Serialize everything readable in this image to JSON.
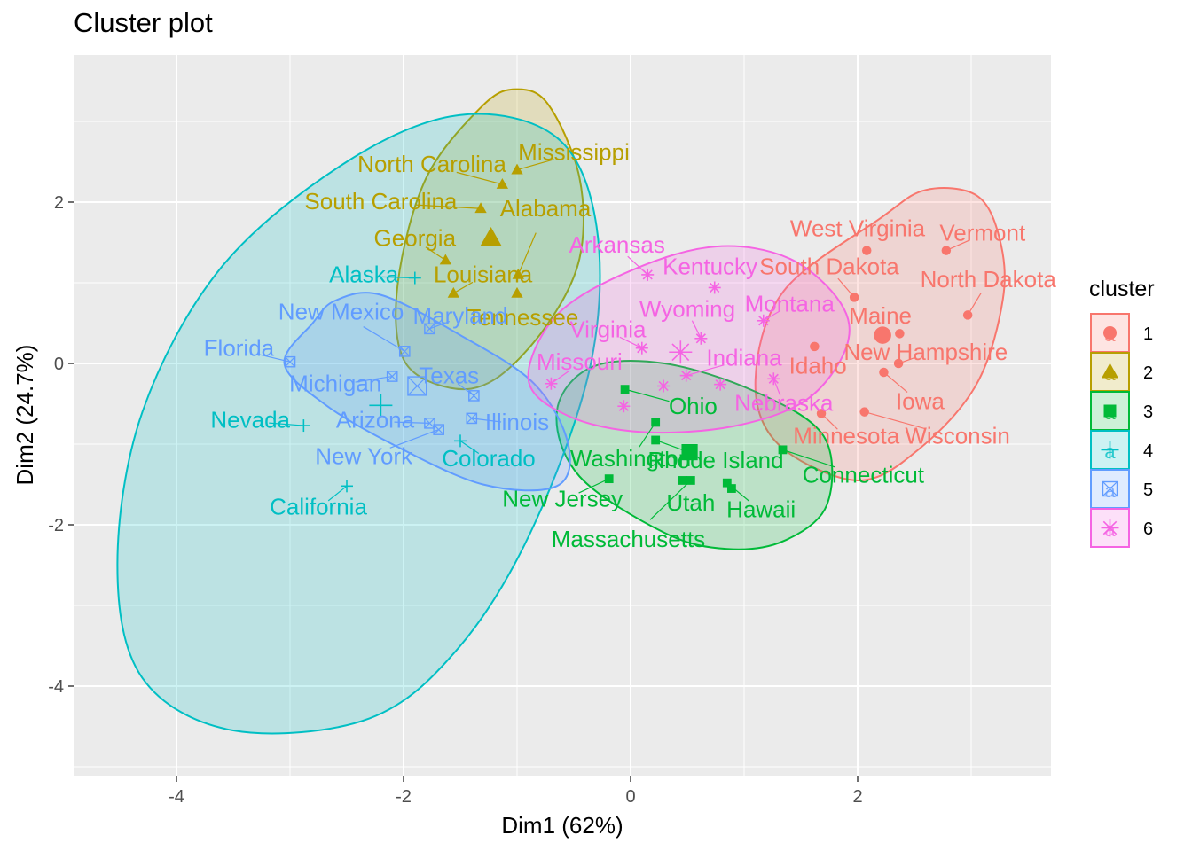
{
  "chart_data": {
    "type": "scatter",
    "title": "Cluster plot",
    "xlabel": "Dim1 (62%)",
    "ylabel": "Dim2 (24.7%)",
    "xlim": [
      -4.9,
      3.7
    ],
    "ylim": [
      -5.1,
      3.6
    ],
    "xticks": [
      -4,
      -2,
      0,
      2
    ],
    "yticks": [
      -4,
      -2,
      0,
      2
    ],
    "grid": true,
    "legend": {
      "title": "cluster",
      "position": "right",
      "items": [
        {
          "label": "1",
          "color": "#F8766D",
          "shape": "circle"
        },
        {
          "label": "2",
          "color": "#B79F00",
          "shape": "triangle"
        },
        {
          "label": "3",
          "color": "#00BA38",
          "shape": "square"
        },
        {
          "label": "4",
          "color": "#00BFC4",
          "shape": "plus"
        },
        {
          "label": "5",
          "color": "#619CFF",
          "shape": "boxx"
        },
        {
          "label": "6",
          "color": "#F564E3",
          "shape": "star"
        }
      ]
    },
    "series": [
      {
        "name": "1",
        "color": "#F8766D",
        "shape": "circle",
        "centroid": [
          2.22,
          0.35
        ],
        "ellipse": {
          "poly": [
            [
              2.0,
              -1.45
            ],
            [
              1.3,
              -1.0
            ],
            [
              1.1,
              -0.2
            ],
            [
              1.35,
              0.9
            ],
            [
              2.2,
              1.8
            ],
            [
              2.6,
              2.15
            ],
            [
              3.05,
              2.08
            ],
            [
              3.25,
              1.55
            ],
            [
              3.28,
              0.8
            ],
            [
              3.05,
              -0.25
            ],
            [
              2.55,
              -1.05
            ]
          ]
        },
        "points": [
          {
            "label": "West Virginia",
            "x": 2.08,
            "y": 1.4
          },
          {
            "label": "Vermont",
            "x": 2.78,
            "y": 1.4
          },
          {
            "label": "South Dakota",
            "x": 1.97,
            "y": 0.82
          },
          {
            "label": "North Dakota",
            "x": 2.97,
            "y": 0.6
          },
          {
            "label": "Maine",
            "x": 2.37,
            "y": 0.37
          },
          {
            "label": "Idaho",
            "x": 1.62,
            "y": 0.21
          },
          {
            "label": "New Hampshire",
            "x": 2.36,
            "y": 0.0
          },
          {
            "label": "Iowa",
            "x": 2.23,
            "y": -0.11
          },
          {
            "label": "Minnesota",
            "x": 1.68,
            "y": -0.62
          },
          {
            "label": "Wisconsin",
            "x": 2.06,
            "y": -0.6
          }
        ]
      },
      {
        "name": "2",
        "color": "#B79F00",
        "shape": "triangle",
        "centroid": [
          -1.23,
          1.55
        ],
        "ellipse": {
          "poly": [
            [
              -1.6,
              -0.3
            ],
            [
              -2.0,
              0.05
            ],
            [
              -2.05,
              1.0
            ],
            [
              -1.8,
              2.3
            ],
            [
              -1.3,
              3.2
            ],
            [
              -1.0,
              3.4
            ],
            [
              -0.72,
              3.2
            ],
            [
              -0.45,
              2.3
            ],
            [
              -0.45,
              1.3
            ],
            [
              -0.75,
              0.45
            ],
            [
              -1.2,
              -0.2
            ]
          ]
        },
        "points": [
          {
            "label": "Mississippi",
            "x": -1.0,
            "y": 2.4
          },
          {
            "label": "North Carolina",
            "x": -1.13,
            "y": 2.22
          },
          {
            "label": "South Carolina",
            "x": -1.32,
            "y": 1.92
          },
          {
            "label": "Alabama",
            "x": -0.99,
            "y": 1.1
          },
          {
            "label": "Georgia",
            "x": -1.63,
            "y": 1.28
          },
          {
            "label": "Louisiana",
            "x": -1.56,
            "y": 0.87
          },
          {
            "label": "Tennessee",
            "x": -1.0,
            "y": 0.87
          }
        ]
      },
      {
        "name": "3",
        "color": "#00BA38",
        "shape": "square",
        "centroid": [
          0.52,
          -1.1
        ],
        "ellipse": {
          "poly": [
            [
              0.85,
              -2.3
            ],
            [
              0.3,
              -2.1
            ],
            [
              -0.45,
              -1.4
            ],
            [
              -0.65,
              -0.6
            ],
            [
              -0.35,
              -0.05
            ],
            [
              0.3,
              0.0
            ],
            [
              1.1,
              -0.35
            ],
            [
              1.7,
              -0.9
            ],
            [
              1.73,
              -1.75
            ],
            [
              1.35,
              -2.2
            ]
          ]
        },
        "points": [
          {
            "label": "Ohio",
            "x": -0.05,
            "y": -0.32
          },
          {
            "label": "Washington",
            "x": 0.22,
            "y": -0.73
          },
          {
            "label": "Rhode Island",
            "x": 0.22,
            "y": -0.95
          },
          {
            "label": "Connecticut",
            "x": 1.34,
            "y": -1.07
          },
          {
            "label": "New Jersey",
            "x": -0.19,
            "y": -1.43
          },
          {
            "label": "Utah",
            "x": 0.46,
            "y": -1.45
          },
          {
            "label": "Massachusetts",
            "x": 0.53,
            "y": -1.45
          },
          {
            "label": "Hawaii",
            "x": 0.85,
            "y": -1.48
          },
          {
            "label": "Hawaii-2",
            "x": 0.89,
            "y": -1.55
          }
        ]
      },
      {
        "name": "4",
        "color": "#00BFC4",
        "shape": "plus",
        "centroid": [
          -2.2,
          -0.52
        ],
        "ellipse": {
          "poly": [
            [
              -2.3,
              -4.4
            ],
            [
              -3.5,
              -4.55
            ],
            [
              -4.3,
              -3.9
            ],
            [
              -4.52,
              -2.5
            ],
            [
              -4.3,
              -0.6
            ],
            [
              -3.6,
              1.2
            ],
            [
              -2.5,
              2.5
            ],
            [
              -1.5,
              3.08
            ],
            [
              -0.65,
              2.8
            ],
            [
              -0.3,
              1.7
            ],
            [
              -0.35,
              0.0
            ],
            [
              -0.85,
              -2.0
            ],
            [
              -1.5,
              -3.5
            ]
          ]
        },
        "points": [
          {
            "label": "Alaska",
            "x": -1.9,
            "y": 1.06
          },
          {
            "label": "Nevada",
            "x": -2.88,
            "y": -0.77
          },
          {
            "label": "Colorado",
            "x": -1.5,
            "y": -0.96
          },
          {
            "label": "California",
            "x": -2.5,
            "y": -1.52
          }
        ]
      },
      {
        "name": "5",
        "color": "#619CFF",
        "shape": "boxx",
        "centroid": [
          -1.88,
          -0.28
        ],
        "ellipse": {
          "poly": [
            [
              -2.8,
              0.5
            ],
            [
              -3.05,
              0.0
            ],
            [
              -2.7,
              -0.5
            ],
            [
              -2.1,
              -1.0
            ],
            [
              -1.3,
              -1.5
            ],
            [
              -0.65,
              -1.52
            ],
            [
              -0.55,
              -1.0
            ],
            [
              -0.85,
              -0.25
            ],
            [
              -1.5,
              0.35
            ],
            [
              -2.2,
              0.85
            ],
            [
              -2.6,
              0.78
            ]
          ]
        },
        "points": [
          {
            "label": "Florida",
            "x": -3.0,
            "y": 0.02
          },
          {
            "label": "New Mexico",
            "x": -1.99,
            "y": 0.15
          },
          {
            "label": "Maryland",
            "x": -1.77,
            "y": 0.43
          },
          {
            "label": "Michigan",
            "x": -2.1,
            "y": -0.16
          },
          {
            "label": "Texas",
            "x": -1.38,
            "y": -0.4
          },
          {
            "label": "Illinois",
            "x": -1.4,
            "y": -0.68
          },
          {
            "label": "Arizona",
            "x": -1.77,
            "y": -0.74
          },
          {
            "label": "New York",
            "x": -1.69,
            "y": -0.82
          }
        ]
      },
      {
        "name": "6",
        "color": "#F564E3",
        "shape": "star",
        "centroid": [
          0.44,
          0.14
        ],
        "ellipse": {
          "poly": [
            [
              0.1,
              -0.85
            ],
            [
              -0.55,
              -0.65
            ],
            [
              -0.9,
              -0.2
            ],
            [
              -0.65,
              0.6
            ],
            [
              0.0,
              1.15
            ],
            [
              0.75,
              1.45
            ],
            [
              1.4,
              1.3
            ],
            [
              1.85,
              0.75
            ],
            [
              1.9,
              0.2
            ],
            [
              1.55,
              -0.45
            ],
            [
              0.9,
              -0.78
            ]
          ]
        },
        "points": [
          {
            "label": "Arkansas",
            "x": 0.15,
            "y": 1.1
          },
          {
            "label": "Kentucky",
            "x": 0.74,
            "y": 0.94
          },
          {
            "label": "Montana",
            "x": 1.17,
            "y": 0.53
          },
          {
            "label": "Wyoming",
            "x": 0.62,
            "y": 0.31
          },
          {
            "label": "Virginia",
            "x": 0.1,
            "y": 0.19
          },
          {
            "label": "Indiana",
            "x": 0.49,
            "y": -0.15
          },
          {
            "label": "Missouri",
            "x": -0.7,
            "y": -0.25
          },
          {
            "label": "Nebraska",
            "x": 1.26,
            "y": -0.19
          },
          {
            "label": "Virginia-2",
            "x": 0.29,
            "y": -0.28
          },
          {
            "label": "Nebraska-2",
            "x": 0.79,
            "y": -0.26
          },
          {
            "label": "Ohio-2",
            "x": -0.06,
            "y": -0.53
          }
        ]
      }
    ],
    "labels": [
      {
        "text": "West Virginia",
        "x": 2.0,
        "y": 1.65,
        "series": 0
      },
      {
        "text": "Vermont",
        "x": 3.1,
        "y": 1.6,
        "series": 0
      },
      {
        "text": "South Dakota",
        "x": 1.75,
        "y": 1.18,
        "series": 0
      },
      {
        "text": "North Dakota",
        "x": 3.15,
        "y": 1.02,
        "series": 0
      },
      {
        "text": "Maine",
        "x": 2.2,
        "y": 0.57,
        "series": 0
      },
      {
        "text": "New Hampshire",
        "x": 2.6,
        "y": 0.12,
        "series": 0
      },
      {
        "text": "Idaho",
        "x": 1.65,
        "y": -0.05,
        "series": 0
      },
      {
        "text": "Iowa",
        "x": 2.55,
        "y": -0.49,
        "series": 0
      },
      {
        "text": "Minnesota",
        "x": 1.9,
        "y": -0.92,
        "series": 0
      },
      {
        "text": "Wisconsin",
        "x": 2.88,
        "y": -0.92,
        "series": 0
      },
      {
        "text": "Mississippi",
        "x": -0.5,
        "y": 2.6,
        "series": 1
      },
      {
        "text": "North Carolina",
        "x": -1.75,
        "y": 2.45,
        "series": 1
      },
      {
        "text": "South Carolina",
        "x": -2.2,
        "y": 1.99,
        "series": 1
      },
      {
        "text": "Alabama",
        "x": -0.75,
        "y": 1.9,
        "series": 1
      },
      {
        "text": "Georgia",
        "x": -1.9,
        "y": 1.53,
        "series": 1
      },
      {
        "text": "Louisiana",
        "x": -1.3,
        "y": 1.08,
        "series": 1
      },
      {
        "text": "Tennessee",
        "x": -0.95,
        "y": 0.55,
        "series": 1
      },
      {
        "text": "Ohio",
        "x": 0.55,
        "y": -0.55,
        "series": 2
      },
      {
        "text": "Washington",
        "x": 0.0,
        "y": -1.2,
        "series": 2
      },
      {
        "text": "Rhode Island",
        "x": 0.75,
        "y": -1.22,
        "series": 2
      },
      {
        "text": "Connecticut",
        "x": 2.05,
        "y": -1.4,
        "series": 2
      },
      {
        "text": "New Jersey",
        "x": -0.6,
        "y": -1.7,
        "series": 2
      },
      {
        "text": "Utah",
        "x": 0.53,
        "y": -1.75,
        "series": 2
      },
      {
        "text": "Massachusetts",
        "x": -0.02,
        "y": -2.2,
        "series": 2
      },
      {
        "text": "Hawaii",
        "x": 1.15,
        "y": -1.83,
        "series": 2
      },
      {
        "text": "Alaska",
        "x": -2.35,
        "y": 1.08,
        "series": 3
      },
      {
        "text": "Nevada",
        "x": -3.35,
        "y": -0.72,
        "series": 3
      },
      {
        "text": "Colorado",
        "x": -1.25,
        "y": -1.2,
        "series": 3
      },
      {
        "text": "California",
        "x": -2.75,
        "y": -1.8,
        "series": 3
      },
      {
        "text": "Florida",
        "x": -3.45,
        "y": 0.17,
        "series": 4
      },
      {
        "text": "New Mexico",
        "x": -2.55,
        "y": 0.62,
        "series": 4
      },
      {
        "text": "Maryland",
        "x": -1.5,
        "y": 0.57,
        "series": 4
      },
      {
        "text": "Michigan",
        "x": -2.6,
        "y": -0.27,
        "series": 4
      },
      {
        "text": "Texas",
        "x": -1.6,
        "y": -0.17,
        "series": 4
      },
      {
        "text": "Illinois",
        "x": -1.0,
        "y": -0.75,
        "series": 4
      },
      {
        "text": "Arizona",
        "x": -2.25,
        "y": -0.72,
        "series": 4
      },
      {
        "text": "New York",
        "x": -2.35,
        "y": -1.17,
        "series": 4
      },
      {
        "text": "Arkansas",
        "x": -0.12,
        "y": 1.45,
        "series": 5
      },
      {
        "text": "Kentucky",
        "x": 0.7,
        "y": 1.18,
        "series": 5
      },
      {
        "text": "Montana",
        "x": 1.4,
        "y": 0.72,
        "series": 5
      },
      {
        "text": "Wyoming",
        "x": 0.5,
        "y": 0.65,
        "series": 5
      },
      {
        "text": "Virginia",
        "x": -0.2,
        "y": 0.4,
        "series": 5
      },
      {
        "text": "Indiana",
        "x": 1.0,
        "y": 0.05,
        "series": 5
      },
      {
        "text": "Missouri",
        "x": -0.45,
        "y": 0.0,
        "series": 5
      },
      {
        "text": "Nebraska",
        "x": 1.35,
        "y": -0.51,
        "series": 5
      }
    ]
  }
}
